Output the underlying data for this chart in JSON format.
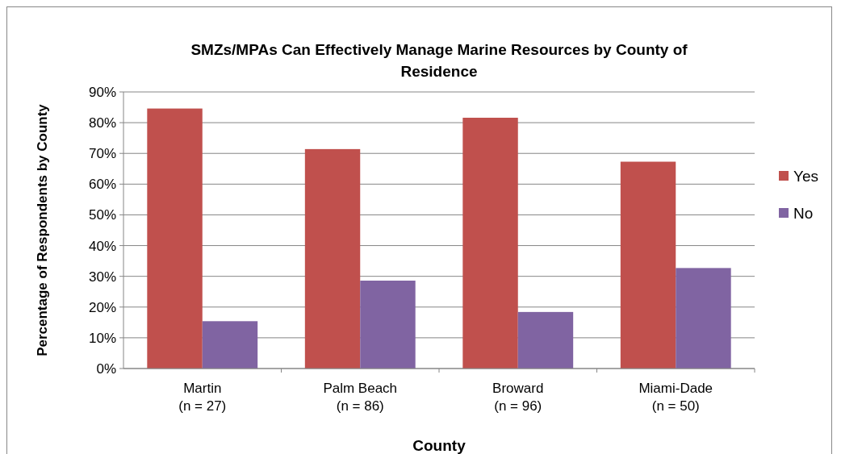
{
  "chart_data": {
    "type": "bar",
    "title": "SMZs/MPAs Can Effectively Manage Marine Resources by County of Residence",
    "xlabel": "County",
    "ylabel": "Percentage of Respondents by County",
    "categories": [
      "Martin\n(n = 27)",
      "Palm Beach\n(n = 86)",
      "Broward\n(n = 96)",
      "Miami-Dade\n(n = 50)"
    ],
    "series": [
      {
        "name": "Yes",
        "color": "#c0504d",
        "values": [
          84.6,
          71.4,
          81.6,
          67.3
        ]
      },
      {
        "name": "No",
        "color": "#8064a2",
        "values": [
          15.4,
          28.6,
          18.4,
          32.7
        ]
      }
    ],
    "ylim": [
      0,
      90
    ],
    "yticks": [
      {
        "value": 0,
        "label": "0%"
      },
      {
        "value": 10,
        "label": "10%"
      },
      {
        "value": 20,
        "label": "20%"
      },
      {
        "value": 30,
        "label": "30%"
      },
      {
        "value": 40,
        "label": "40%"
      },
      {
        "value": 50,
        "label": "50%"
      },
      {
        "value": 60,
        "label": "60%"
      },
      {
        "value": 70,
        "label": "70%"
      },
      {
        "value": 80,
        "label": "80%"
      },
      {
        "value": 90,
        "label": "90%"
      }
    ],
    "grid": "y",
    "legend": "right"
  }
}
